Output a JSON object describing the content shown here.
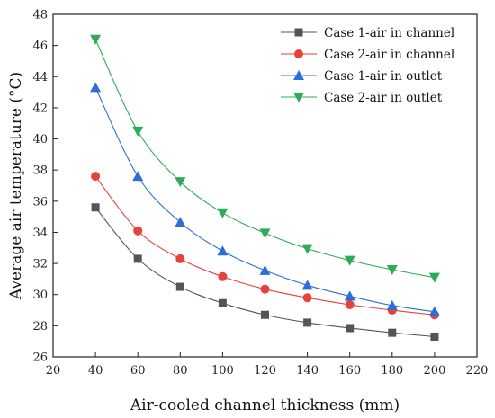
{
  "chart_data": {
    "type": "line",
    "title": "",
    "xlabel": "Air-cooled channel thickness (mm)",
    "ylabel": "Average air temperature (°C)",
    "xlim": [
      20,
      220
    ],
    "ylim": [
      26,
      48
    ],
    "xticks": [
      20,
      40,
      60,
      80,
      100,
      120,
      140,
      160,
      180,
      200,
      220
    ],
    "yticks": [
      26,
      28,
      30,
      32,
      34,
      36,
      38,
      40,
      42,
      44,
      46,
      48
    ],
    "grid": false,
    "legend_position": "top-right",
    "x": [
      40,
      60,
      80,
      100,
      120,
      140,
      160,
      180,
      200
    ],
    "series": [
      {
        "name": "Case 1-air in channel",
        "color": "#555555",
        "marker": "square",
        "values": [
          35.6,
          32.3,
          30.5,
          29.45,
          28.7,
          28.2,
          27.85,
          27.55,
          27.3
        ]
      },
      {
        "name": "Case 2-air in channel",
        "color": "#e8413c",
        "marker": "circle",
        "values": [
          37.6,
          34.1,
          32.3,
          31.15,
          30.35,
          29.8,
          29.35,
          29.0,
          28.7
        ]
      },
      {
        "name": "Case 1-air in outlet",
        "color": "#2b6fd6",
        "marker": "triangle-up",
        "values": [
          43.3,
          37.6,
          34.65,
          32.8,
          31.55,
          30.6,
          29.9,
          29.3,
          28.9
        ]
      },
      {
        "name": "Case 2-air in outlet",
        "color": "#2eab57",
        "marker": "triangle-down",
        "values": [
          46.4,
          40.5,
          37.25,
          35.25,
          33.95,
          32.95,
          32.2,
          31.6,
          31.1
        ]
      }
    ]
  }
}
